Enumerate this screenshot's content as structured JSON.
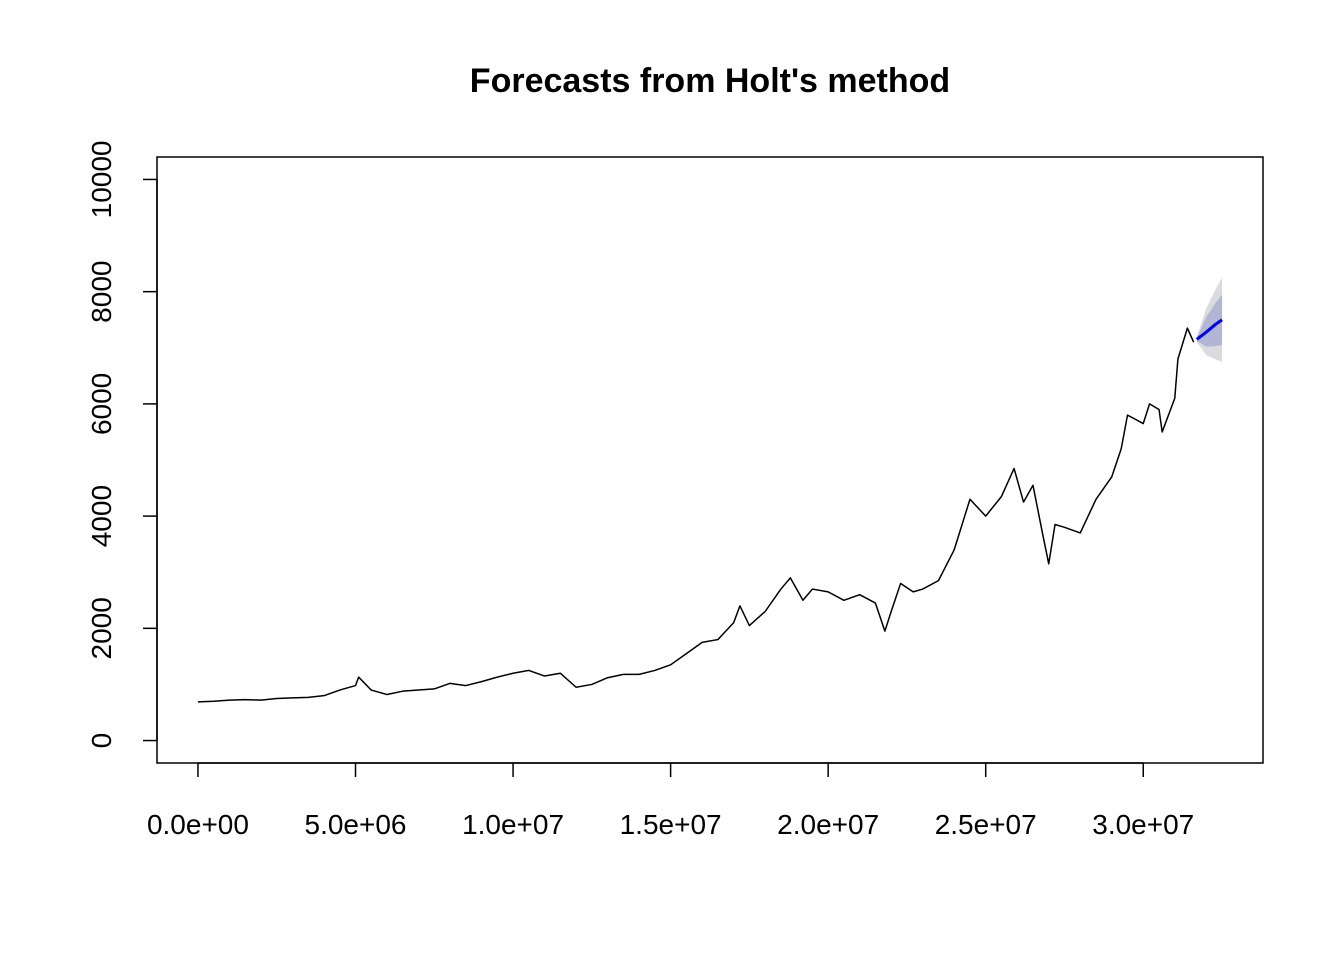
{
  "chart_data": {
    "type": "line",
    "title": "Forecasts from Holt's method",
    "x": [
      0,
      500000,
      1000000,
      1500000,
      2000000,
      2500000,
      3000000,
      3500000,
      4000000,
      4500000,
      5000000,
      5100000,
      5500000,
      6000000,
      6500000,
      7000000,
      7500000,
      8000000,
      8500000,
      9000000,
      9500000,
      10000000,
      10500000,
      11000000,
      11500000,
      12000000,
      12500000,
      13000000,
      13500000,
      14000000,
      14500000,
      15000000,
      15500000,
      16000000,
      16500000,
      17000000,
      17200000,
      17500000,
      18000000,
      18500000,
      18800000,
      19200000,
      19500000,
      20000000,
      20500000,
      21000000,
      21500000,
      21800000,
      22000000,
      22300000,
      22700000,
      23000000,
      23500000,
      24000000,
      24500000,
      25000000,
      25500000,
      25900000,
      26200000,
      26500000,
      26800000,
      27000000,
      27200000,
      27500000,
      28000000,
      28500000,
      29000000,
      29300000,
      29500000,
      30000000,
      30200000,
      30500000,
      30600000,
      30800000,
      31000000,
      31100000,
      31400000,
      31600000
    ],
    "values": [
      690,
      700,
      720,
      730,
      720,
      750,
      760,
      770,
      800,
      900,
      980,
      1130,
      900,
      820,
      880,
      900,
      920,
      1020,
      980,
      1050,
      1130,
      1200,
      1250,
      1150,
      1200,
      950,
      1000,
      1120,
      1180,
      1180,
      1250,
      1350,
      1550,
      1750,
      1800,
      2100,
      2400,
      2050,
      2300,
      2700,
      2900,
      2500,
      2700,
      2650,
      2500,
      2600,
      2450,
      1950,
      2300,
      2800,
      2650,
      2700,
      2850,
      3400,
      4300,
      4000,
      4350,
      4850,
      4250,
      4550,
      3700,
      3150,
      3850,
      3800,
      3700,
      4300,
      4700,
      5200,
      5800,
      5650,
      6000,
      5900,
      5500,
      5800,
      6100,
      6800,
      7350,
      7100
    ],
    "color": "#000000",
    "forecast": {
      "x": [
        31700000,
        32000000,
        32300000,
        32500000
      ],
      "values": [
        7150,
        7280,
        7420,
        7500
      ],
      "color": "#0000ff"
    },
    "bands": [
      {
        "x": [
          31700000,
          32000000,
          32300000,
          32500000
        ],
        "lower": [
          7100,
          6870,
          6790,
          6750
        ],
        "upper": [
          7200,
          7700,
          8050,
          8250
        ],
        "color": "#dbdbdf"
      },
      {
        "x": [
          31700000,
          32000000,
          32300000,
          32500000
        ],
        "lower": [
          7120,
          7020,
          7030,
          7050
        ],
        "upper": [
          7180,
          7550,
          7800,
          7950
        ],
        "color": "#b1b6d5"
      }
    ],
    "xlim": [
      -1300000,
      33800000
    ],
    "ylim": [
      -400,
      10400
    ],
    "xticks": [
      {
        "value": 0,
        "label": "0.0e+00"
      },
      {
        "value": 5000000,
        "label": "5.0e+06"
      },
      {
        "value": 10000000,
        "label": "1.0e+07"
      },
      {
        "value": 15000000,
        "label": "1.5e+07"
      },
      {
        "value": 20000000,
        "label": "2.0e+07"
      },
      {
        "value": 25000000,
        "label": "2.5e+07"
      },
      {
        "value": 30000000,
        "label": "3.0e+07"
      }
    ],
    "yticks": [
      0,
      2000,
      4000,
      6000,
      8000,
      10000
    ]
  }
}
